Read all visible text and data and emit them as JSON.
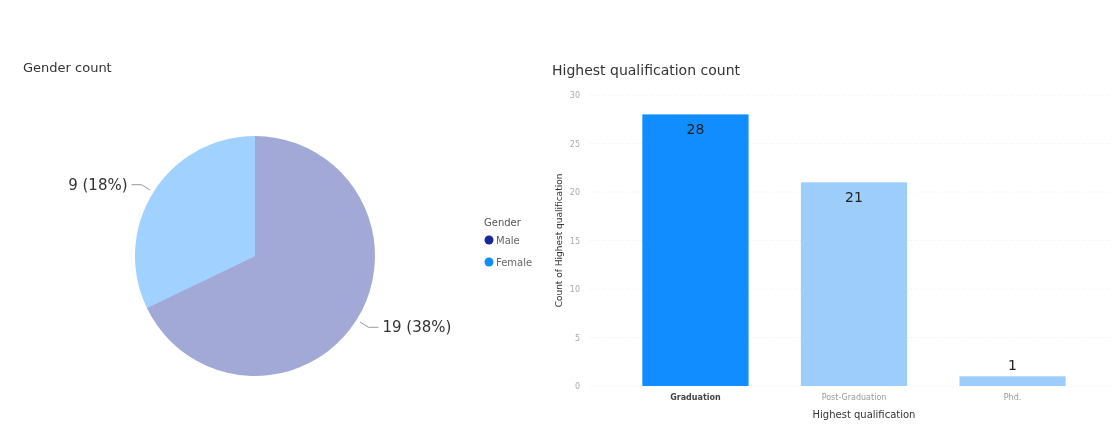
{
  "chart_data": [
    {
      "type": "pie",
      "title": "Gender count",
      "legend_title": "Gender",
      "legend": "right",
      "categories": [
        "Male",
        "Female"
      ],
      "values": [
        19,
        9
      ],
      "colors": [
        "#1a2799",
        "#118dff"
      ],
      "value_labels": [
        "19 (38%)",
        "9 (18%)"
      ]
    },
    {
      "type": "bar",
      "title": "Highest qualification count",
      "xlabel": "Highest qualification",
      "ylabel": "Count of Highest qualification",
      "categories": [
        "Graduation",
        "Post-Graduation",
        "Phd."
      ],
      "values": [
        28,
        21,
        1
      ],
      "colors": [
        "#118dff",
        "#9dcefb",
        "#9dcefb"
      ],
      "ylim": [
        0,
        30
      ],
      "yticks": [
        0,
        5,
        10,
        15,
        20,
        25,
        30
      ],
      "grid": "y",
      "data_labels": true
    }
  ]
}
